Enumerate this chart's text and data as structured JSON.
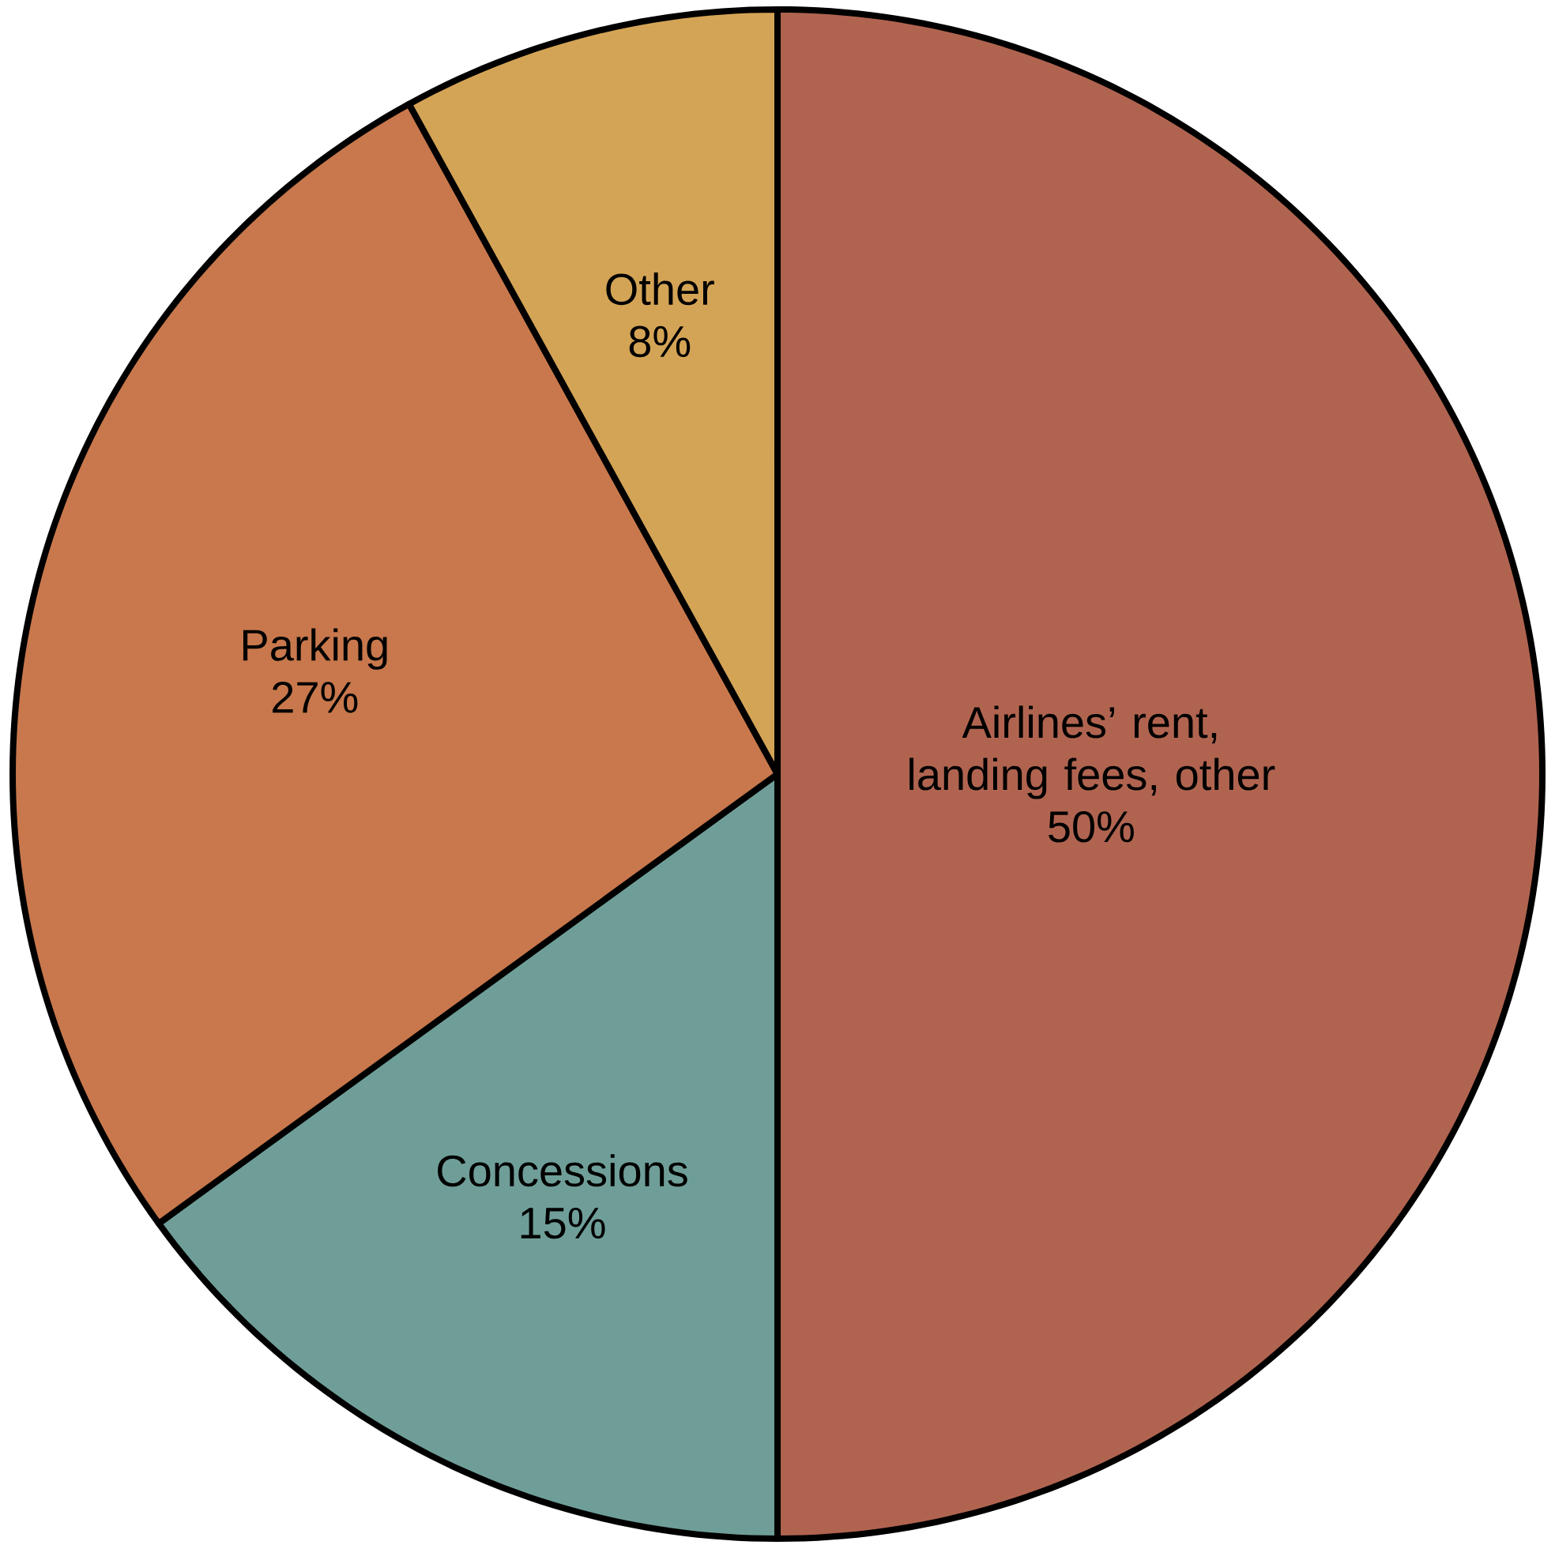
{
  "chart_data": {
    "type": "pie",
    "categories": [
      "Airlines’ rent, landing fees, other",
      "Concessions",
      "Parking",
      "Other"
    ],
    "values": [
      50,
      15,
      27,
      8
    ],
    "value_labels": [
      "50%",
      "15%",
      "27%",
      "8%"
    ],
    "colors": [
      "#b06450",
      "#6f9e98",
      "#c8784c",
      "#d4a456"
    ]
  }
}
